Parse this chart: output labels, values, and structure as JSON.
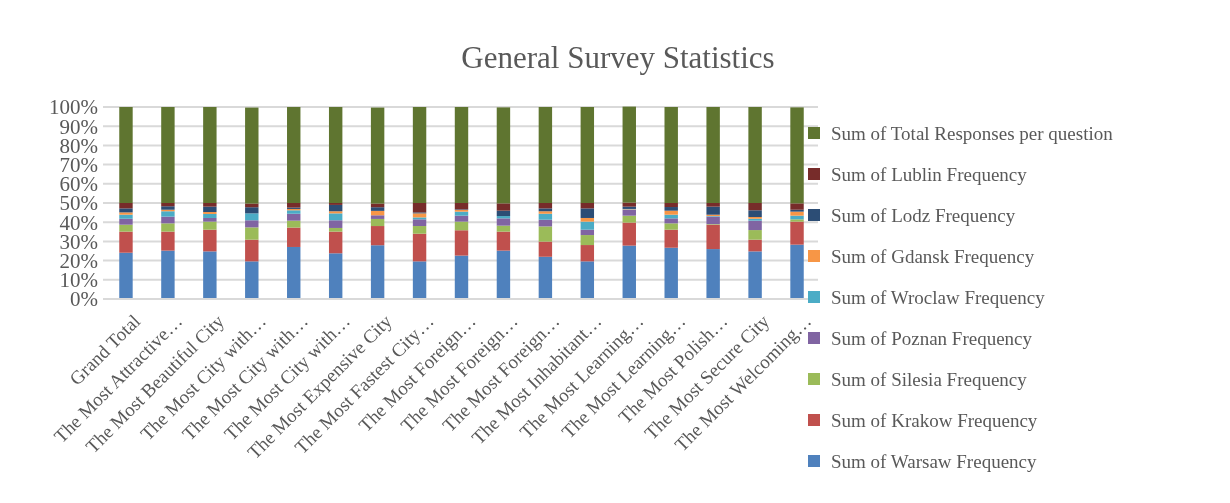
{
  "chart_data": {
    "type": "bar",
    "title": "General Survey Statistics",
    "stacked": true,
    "grid": "y",
    "legend": "right",
    "categories": [
      "Grand Total",
      "The Most Attractive…",
      "The Most Beautiful City",
      "The Most City with…",
      "The Most City with…",
      "The Most City with…",
      "The Most Expensive City",
      "The Most Fastest City…",
      "The Most Foreign…",
      "The Most Foreign…",
      "The Most Foreign…",
      "The Most Inhabitant…",
      "The Most Learning…",
      "The Most Learning…",
      "The Most Polish…",
      "The Most Secure City",
      "The Most Welcoming…"
    ],
    "ylim": [
      0,
      100
    ],
    "yticks": [
      {
        "value": 0,
        "label": "0%"
      },
      {
        "value": 10,
        "label": "10%"
      },
      {
        "value": 20,
        "label": "20%"
      },
      {
        "value": 30,
        "label": "30%"
      },
      {
        "value": 40,
        "label": "40%"
      },
      {
        "value": 50,
        "label": "50%"
      },
      {
        "value": 60,
        "label": "60%"
      },
      {
        "value": 70,
        "label": "70%"
      },
      {
        "value": 80,
        "label": "80%"
      },
      {
        "value": 90,
        "label": "90%"
      },
      {
        "value": 100,
        "label": "100%"
      }
    ],
    "series": [
      {
        "name": "Sum of Warsaw Frequency",
        "color": "#4f81bd",
        "values": [
          24.1,
          25.2,
          24.8,
          19.6,
          27.1,
          23.8,
          28,
          19.6,
          22.6,
          25.2,
          22,
          19.6,
          27.8,
          26.7,
          26,
          24.8,
          28.3
        ]
      },
      {
        "name": "Sum of Krakow Frequency",
        "color": "#c0504d",
        "values": [
          11,
          9.9,
          11.3,
          11.3,
          10.1,
          11.3,
          10,
          14.4,
          13.2,
          9.9,
          7.9,
          8.5,
          12,
          9.4,
          12.7,
          6.1,
          12
        ]
      },
      {
        "name": "Sum of Silesia Frequency",
        "color": "#9bbb59",
        "values": [
          3.6,
          4.3,
          4.2,
          6.4,
          3.6,
          1.9,
          3.7,
          4,
          4.5,
          3.1,
          7.9,
          5.2,
          3.6,
          3.3,
          0.3,
          5,
          1.2
        ]
      },
      {
        "name": "Sum of Poznan Frequency",
        "color": "#8064a2",
        "values": [
          3.1,
          3.5,
          1.9,
          3.7,
          3.6,
          4,
          1.9,
          3.5,
          3.1,
          3.8,
          3.5,
          2.8,
          3.1,
          2.6,
          3.9,
          4.9,
          null
        ]
      },
      {
        "name": "Sum of Wroclaw Frequency",
        "color": "#4bacc6",
        "values": [
          2.1,
          2.8,
          2.1,
          3.6,
          1.8,
          3.6,
          null,
          1,
          2.1,
          1.2,
          3.1,
          4.2,
          0.2,
          1.9,
          0.3,
          1,
          1.9
        ]
      },
      {
        "name": "Sum of Gdansk Frequency",
        "color": "#f79646",
        "values": [
          1.2,
          0.8,
          1,
          null,
          0.7,
          1.1,
          2.3,
          2.1,
          0.9,
          null,
          1.3,
          1.9,
          0.2,
          2.1,
          0.7,
          0.9,
          2.1
        ]
      },
      {
        "name": "Sum of Lodz Frequency",
        "color": "#2c4d75",
        "values": [
          2.1,
          1.8,
          2.8,
          3.2,
          0.7,
          3.3,
          1.9,
          0.5,
          0.3,
          2.8,
          1.5,
          5,
          1.2,
          1.9,
          4.2,
          3.5,
          1
        ]
      },
      {
        "name": "Sum of Lublin Frequency",
        "color": "#772c2a",
        "values": [
          2.8,
          1.7,
          1.9,
          1.9,
          2.4,
          1,
          1.9,
          4.9,
          3.3,
          3.8,
          2.8,
          2.8,
          2.1,
          2.1,
          1.9,
          3.8,
          3.3
        ]
      },
      {
        "name": "Sum of Total Responses per question",
        "color": "#5f7530",
        "values": [
          50,
          50,
          50,
          50,
          50,
          50,
          50,
          50,
          50,
          50,
          50,
          50,
          50,
          50,
          50,
          50,
          50
        ]
      }
    ]
  }
}
